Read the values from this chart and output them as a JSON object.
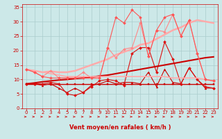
{
  "title": "",
  "xlabel": "Vent moyen/en rafales ( km/h )",
  "bg_color": "#cce8e8",
  "grid_color": "#aacccc",
  "x_range": [
    -0.5,
    23.5
  ],
  "y_range": [
    0,
    36
  ],
  "yticks": [
    0,
    5,
    10,
    15,
    20,
    25,
    30,
    35
  ],
  "xticks": [
    0,
    1,
    2,
    3,
    4,
    5,
    6,
    7,
    8,
    9,
    10,
    11,
    12,
    13,
    14,
    15,
    16,
    17,
    18,
    19,
    20,
    21,
    22,
    23
  ],
  "series": [
    {
      "x": [
        0,
        1,
        2,
        3,
        4,
        5,
        6,
        7,
        8,
        9,
        10,
        11,
        12,
        13,
        14,
        15,
        16,
        17,
        18,
        19,
        20,
        21,
        22,
        23
      ],
      "y": [
        8.5,
        8.5,
        8.5,
        8.5,
        8.5,
        8.5,
        8.5,
        8.5,
        8.5,
        8.5,
        8.5,
        8.5,
        8.5,
        8.5,
        8.5,
        8.5,
        8.5,
        8.5,
        8.5,
        8.5,
        8.5,
        8.5,
        8.5,
        8.5
      ],
      "color": "#cc0000",
      "lw": 1.0,
      "marker": "s",
      "ms": 2.0
    },
    {
      "x": [
        0,
        1,
        2,
        3,
        4,
        5,
        6,
        7,
        8,
        9,
        10,
        11,
        12,
        13,
        14,
        15,
        16,
        17,
        18,
        19,
        20,
        21,
        22,
        23
      ],
      "y": [
        8.5,
        8.5,
        8.0,
        8.5,
        7.0,
        5.5,
        7.0,
        5.5,
        8.0,
        8.5,
        9.5,
        8.5,
        9.0,
        9.0,
        8.5,
        12.5,
        7.5,
        13.5,
        9.0,
        8.5,
        14.0,
        10.0,
        7.0,
        7.0
      ],
      "color": "#cc0000",
      "lw": 0.8,
      "marker": "^",
      "ms": 2.0
    },
    {
      "x": [
        0,
        1,
        2,
        3,
        4,
        5,
        6,
        7,
        8,
        9,
        10,
        11,
        12,
        13,
        14,
        15,
        16,
        17,
        18,
        19,
        20,
        21,
        22,
        23
      ],
      "y": [
        8.5,
        8.5,
        8.5,
        9.0,
        8.5,
        5.0,
        4.5,
        5.5,
        7.5,
        9.5,
        10.0,
        9.5,
        8.0,
        19.0,
        21.0,
        21.0,
        12.5,
        23.0,
        17.0,
        8.5,
        14.0,
        10.0,
        7.5,
        7.0
      ],
      "color": "#dd1111",
      "lw": 0.8,
      "marker": "D",
      "ms": 2.0
    },
    {
      "x": [
        0,
        1,
        2,
        3,
        4,
        5,
        6,
        7,
        8,
        9,
        10,
        11,
        12,
        13,
        14,
        15,
        16,
        17,
        18,
        19,
        20,
        21,
        22,
        23
      ],
      "y": [
        8.5,
        8.8,
        9.2,
        9.5,
        9.8,
        10.0,
        10.3,
        10.5,
        10.8,
        11.2,
        11.5,
        12.0,
        12.5,
        13.0,
        13.5,
        14.0,
        14.5,
        15.0,
        15.5,
        16.0,
        16.5,
        17.0,
        17.5,
        17.8
      ],
      "color": "#cc0000",
      "lw": 1.5,
      "marker": null,
      "ms": 0
    },
    {
      "x": [
        0,
        1,
        2,
        3,
        4,
        5,
        6,
        7,
        8,
        9,
        10,
        11,
        12,
        13,
        14,
        15,
        16,
        17,
        18,
        19,
        20,
        21,
        22,
        23
      ],
      "y": [
        13.5,
        13.0,
        12.5,
        12.0,
        11.5,
        11.0,
        11.0,
        11.0,
        11.0,
        11.0,
        11.0,
        11.0,
        11.0,
        11.0,
        11.0,
        11.0,
        11.0,
        11.0,
        10.5,
        10.5,
        10.5,
        10.5,
        10.0,
        9.5
      ],
      "color": "#ffaaaa",
      "lw": 1.2,
      "marker": null,
      "ms": 0
    },
    {
      "x": [
        0,
        1,
        2,
        3,
        4,
        5,
        6,
        7,
        8,
        9,
        10,
        11,
        12,
        13,
        14,
        15,
        16,
        17,
        18,
        19,
        20,
        21,
        22,
        23
      ],
      "y": [
        13.5,
        13.0,
        12.5,
        12.8,
        12.5,
        12.5,
        13.0,
        14.0,
        15.0,
        16.0,
        17.0,
        18.5,
        19.5,
        20.5,
        22.0,
        22.5,
        24.0,
        25.5,
        27.0,
        28.0,
        29.5,
        30.5,
        30.0,
        29.5
      ],
      "color": "#ffaaaa",
      "lw": 1.8,
      "marker": null,
      "ms": 0
    },
    {
      "x": [
        0,
        1,
        2,
        3,
        4,
        5,
        6,
        7,
        8,
        9,
        10,
        11,
        12,
        13,
        14,
        15,
        16,
        17,
        18,
        19,
        20,
        21,
        22,
        23
      ],
      "y": [
        13.5,
        12.5,
        11.0,
        13.0,
        10.5,
        10.5,
        10.5,
        12.5,
        10.5,
        10.5,
        21.0,
        17.5,
        20.5,
        21.0,
        29.5,
        18.0,
        27.0,
        26.5,
        32.5,
        25.0,
        30.5,
        19.0,
        10.0,
        9.5
      ],
      "color": "#ff8888",
      "lw": 0.8,
      "marker": "D",
      "ms": 2.0
    },
    {
      "x": [
        0,
        1,
        2,
        3,
        4,
        5,
        6,
        7,
        8,
        9,
        10,
        11,
        12,
        13,
        14,
        15,
        16,
        17,
        18,
        19,
        20,
        21,
        22,
        23
      ],
      "y": [
        13.5,
        12.5,
        11.0,
        10.5,
        10.5,
        10.5,
        10.5,
        10.5,
        10.5,
        10.5,
        21.0,
        31.5,
        29.5,
        34.0,
        31.5,
        18.0,
        27.0,
        31.5,
        32.5,
        25.0,
        30.5,
        19.0,
        10.0,
        9.5
      ],
      "color": "#ff5555",
      "lw": 0.8,
      "marker": "D",
      "ms": 2.0
    }
  ],
  "arrow_color": "#cc0000",
  "xlabel_color": "#cc0000",
  "tick_color": "#cc0000",
  "xlabel_fontsize": 6,
  "tick_fontsize": 5
}
